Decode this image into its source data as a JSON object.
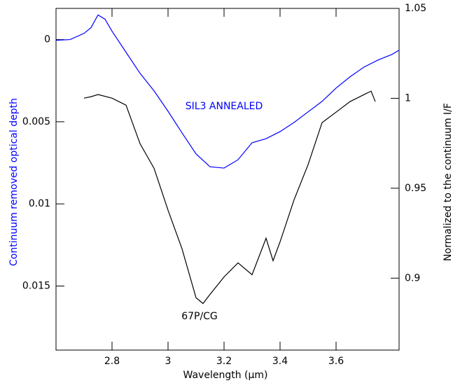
{
  "chart_data": {
    "type": "line",
    "xlabel": "Wavelength (μm)",
    "ylabel": "Continuum removed optical depth",
    "y2label": "Normalized to the continuum I/F",
    "annotations": [
      "SIL3 ANNEALED",
      "67P/CG"
    ],
    "xlim": [
      2.6,
      3.825
    ],
    "xticks": [
      2.8,
      3,
      3.2,
      3.4,
      3.6
    ],
    "ylim": [
      -0.0019,
      0.0189
    ],
    "y_inverted": true,
    "yticks": [
      0,
      0.005,
      0.01,
      0.015
    ],
    "y2lim": [
      0.86,
      1.05
    ],
    "y2ticks": [
      0.9,
      0.95,
      1,
      1.05
    ],
    "series": [
      {
        "color": "#0000ff",
        "axis": "y",
        "x": [
          2.6,
          2.65,
          2.7,
          2.725,
          2.75,
          2.775,
          2.8,
          2.85,
          2.9,
          2.95,
          3.0,
          3.05,
          3.1,
          3.15,
          3.2,
          3.25,
          3.3,
          3.35,
          3.4,
          3.45,
          3.5,
          3.55,
          3.6,
          3.65,
          3.7,
          3.75,
          3.8,
          3.825
        ],
        "values": [
          4e-05,
          0,
          -0.00038,
          -0.00073,
          -0.0015,
          -0.00124,
          -0.00051,
          0.00077,
          0.00205,
          0.00312,
          0.00436,
          0.00568,
          0.00696,
          0.00774,
          0.00782,
          0.00731,
          0.00628,
          0.00603,
          0.0056,
          0.00504,
          0.0044,
          0.00376,
          0.00295,
          0.00226,
          0.00167,
          0.00124,
          0.0009,
          0.00064
        ]
      },
      {
        "color": "#000000",
        "axis": "y2",
        "x": [
          2.7,
          2.725,
          2.75,
          2.8,
          2.85,
          2.9,
          2.95,
          3.0,
          3.05,
          3.1,
          3.125,
          3.15,
          3.2,
          3.25,
          3.3,
          3.35,
          3.375,
          3.4,
          3.45,
          3.5,
          3.55,
          3.6,
          3.65,
          3.7,
          3.725,
          3.74
        ],
        "values": [
          1.0001,
          1.0009,
          1.0021,
          1.0001,
          0.9962,
          0.9748,
          0.9611,
          0.9378,
          0.9163,
          0.8891,
          0.8859,
          0.891,
          0.9007,
          0.9085,
          0.9019,
          0.9222,
          0.9097,
          0.9202,
          0.9436,
          0.9631,
          0.9865,
          0.9923,
          0.9982,
          1.0021,
          1.004,
          0.9982
        ]
      }
    ]
  }
}
